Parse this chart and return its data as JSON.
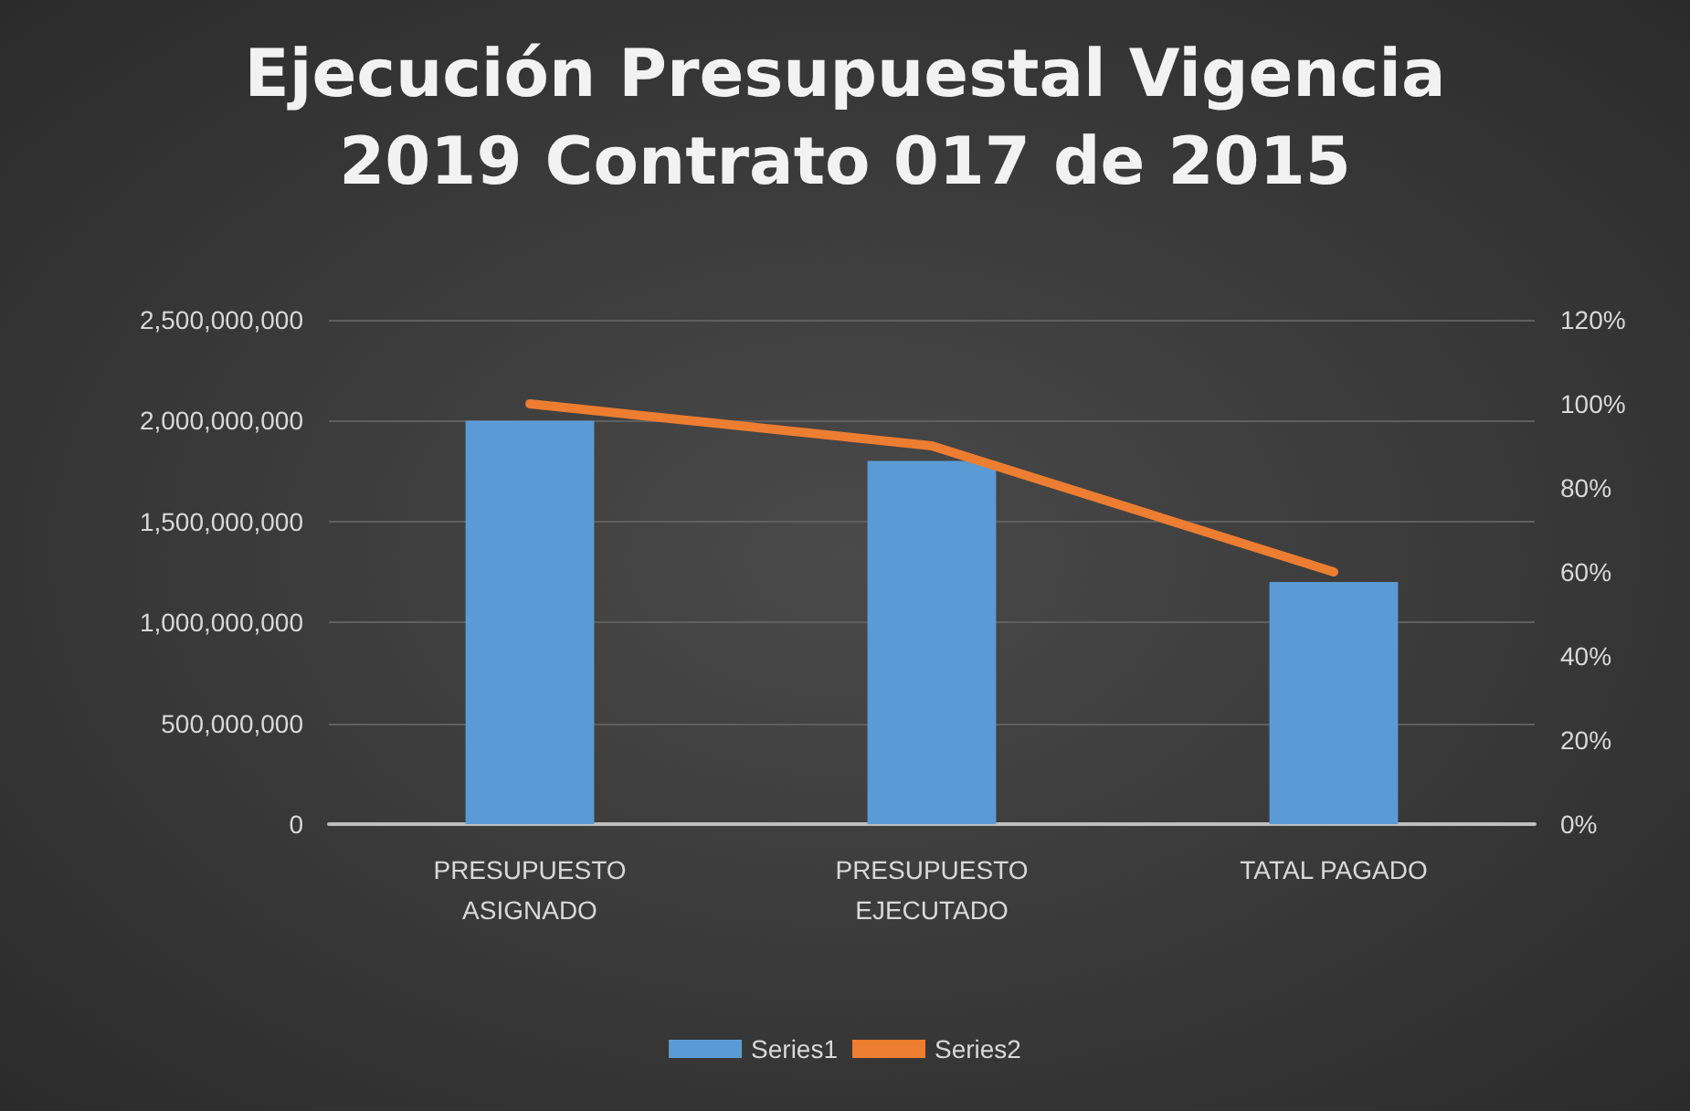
{
  "chart_data": {
    "type": "bar",
    "title": "Ejecución Presupuestal Vigencia\n2019 Contrato 017 de 2015",
    "categories": [
      "PRESUPUESTO\nASIGNADO",
      "PRESUPUESTO\nEJECUTADO",
      "TATAL PAGADO"
    ],
    "series": [
      {
        "name": "Series1",
        "color": "#5b9bd5",
        "values": [
          2000000000,
          1800000000,
          1200000000
        ]
      },
      {
        "name": "Series2",
        "type": "line",
        "axis": "y2",
        "color": "#ed7d31",
        "values": [
          1.0,
          0.9,
          0.6
        ],
        "marker": "none"
      }
    ],
    "ylim": [
      0,
      2500000000
    ],
    "yticks": [
      {
        "value": 0,
        "label": "0"
      },
      {
        "value": 500000000,
        "label": "500,000,000"
      },
      {
        "value": 1000000000,
        "label": "1,000,000,000"
      },
      {
        "value": 1500000000,
        "label": "1,500,000,000"
      },
      {
        "value": 2000000000,
        "label": "2,000,000,000"
      },
      {
        "value": 2500000000,
        "label": "2,500,000,000"
      }
    ],
    "y2lim": [
      0,
      1.2
    ],
    "y2ticks": [
      {
        "value": 0,
        "label": "0%"
      },
      {
        "value": 0.2,
        "label": "20%"
      },
      {
        "value": 0.4,
        "label": "40%"
      },
      {
        "value": 0.6,
        "label": "60%"
      },
      {
        "value": 0.8,
        "label": "80%"
      },
      {
        "value": 1.0,
        "label": "100%"
      },
      {
        "value": 1.2,
        "label": "120%"
      }
    ],
    "grid": "y",
    "legend": "bottom"
  }
}
